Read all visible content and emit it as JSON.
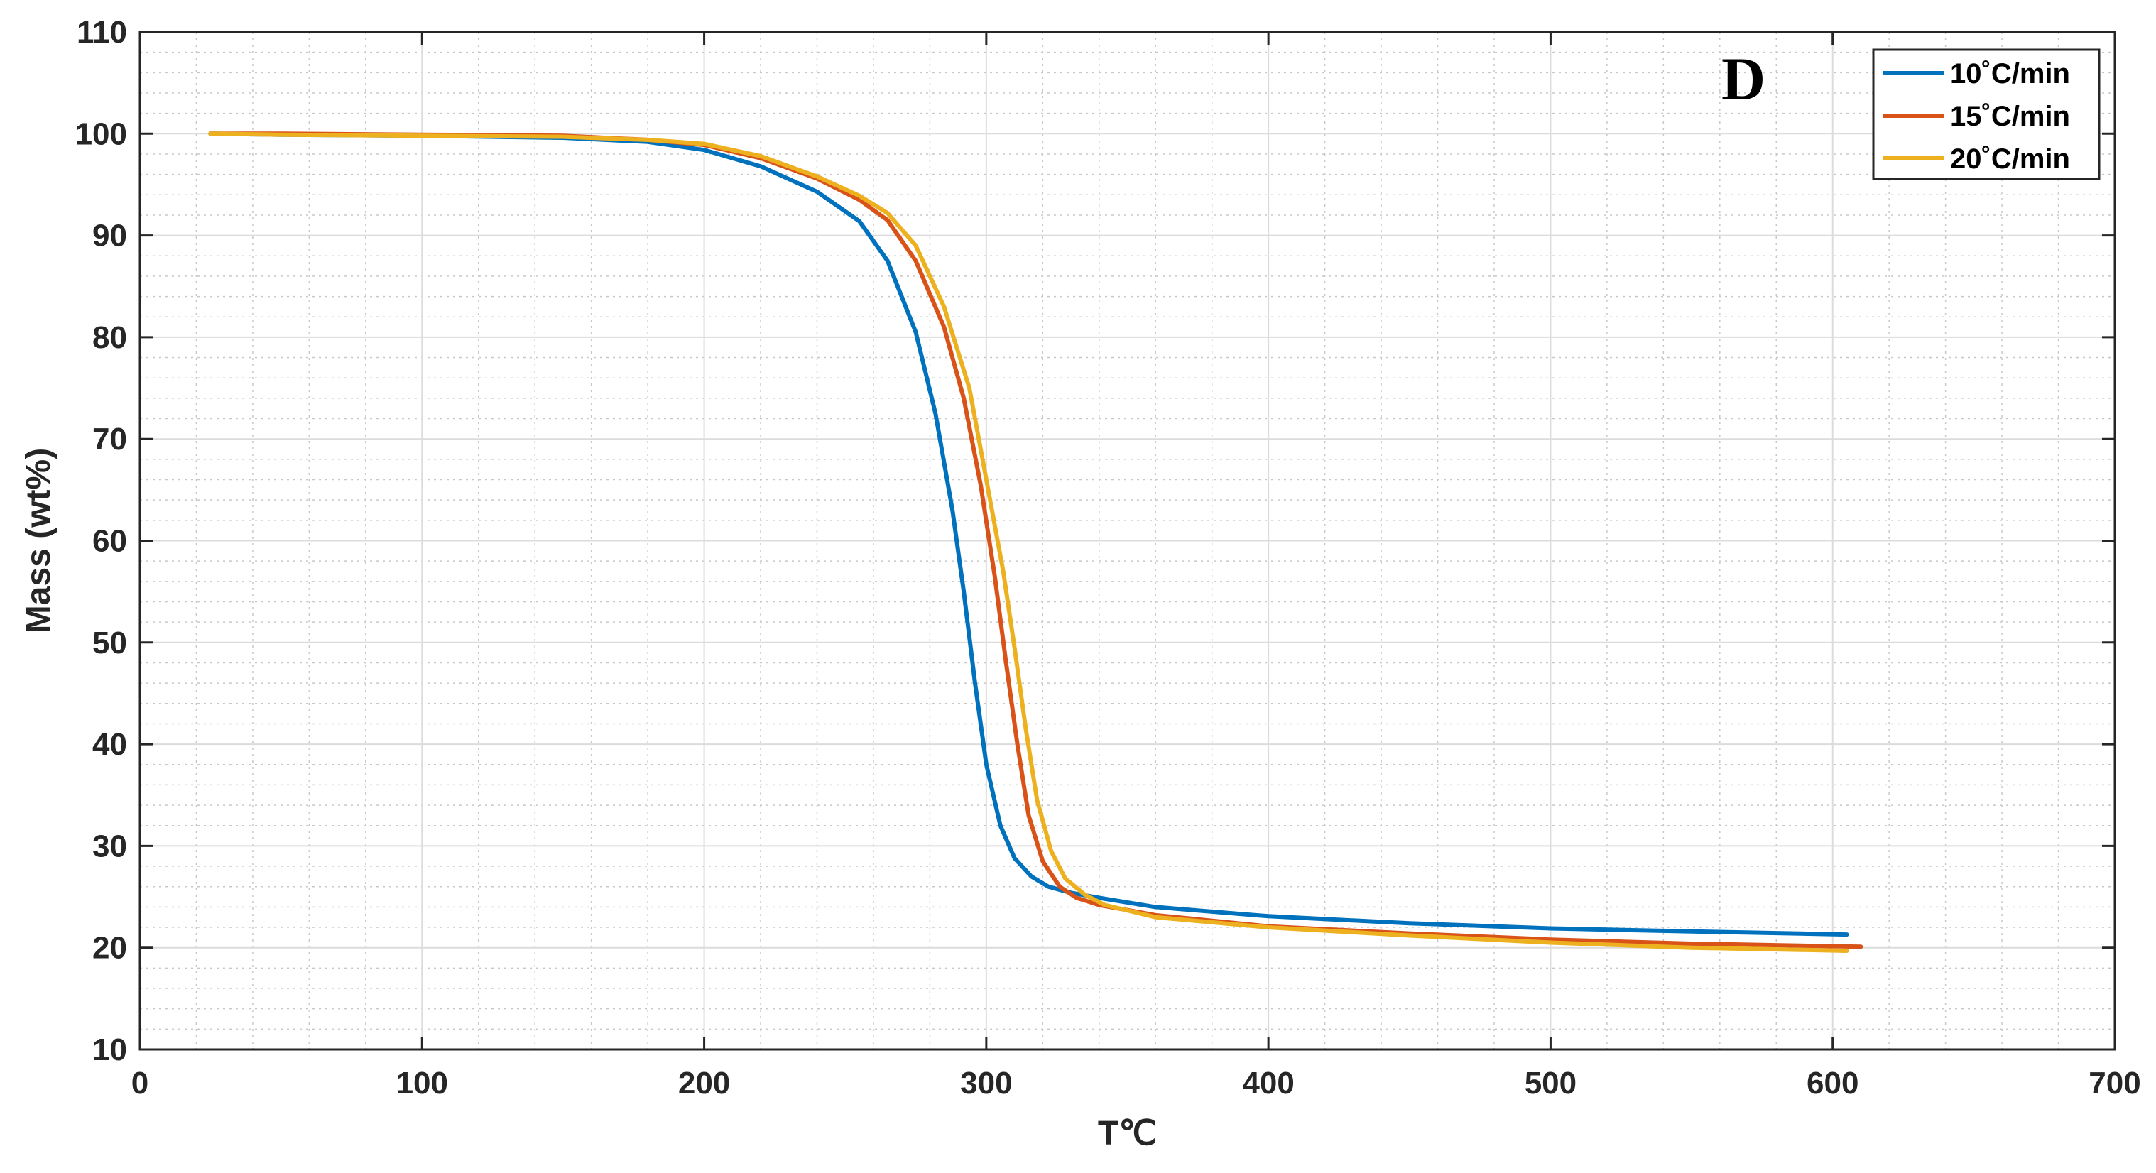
{
  "chart_data": {
    "type": "line",
    "panel_label": "D",
    "title": "",
    "xlabel": "T℃",
    "ylabel": "Mass (wt%)",
    "xlim": [
      0,
      700
    ],
    "ylim": [
      10,
      110
    ],
    "xticks": [
      0,
      100,
      200,
      300,
      400,
      500,
      600,
      700
    ],
    "yticks": [
      10,
      20,
      30,
      40,
      50,
      60,
      70,
      80,
      90,
      100,
      110
    ],
    "grid": true,
    "minor_grid": true,
    "legend_position": "top-right",
    "series": [
      {
        "name": "10˚C/min",
        "color": "#0072BD",
        "x": [
          25,
          50,
          100,
          150,
          180,
          200,
          220,
          240,
          255,
          265,
          275,
          282,
          288,
          292,
          296,
          300,
          305,
          310,
          316,
          322,
          330,
          340,
          360,
          400,
          450,
          500,
          550,
          605
        ],
        "y": [
          100,
          99.9,
          99.8,
          99.6,
          99.2,
          98.4,
          96.8,
          94.3,
          91.4,
          87.5,
          80.5,
          72.5,
          63,
          55,
          46,
          38,
          32,
          28.8,
          27,
          26,
          25.4,
          24.9,
          24,
          23.1,
          22.4,
          21.9,
          21.6,
          21.3
        ]
      },
      {
        "name": "15˚C/min",
        "color": "#D95319",
        "x": [
          25,
          50,
          100,
          150,
          180,
          200,
          220,
          240,
          255,
          265,
          275,
          285,
          292,
          298,
          303,
          307,
          311,
          315,
          320,
          326,
          332,
          340,
          360,
          400,
          450,
          500,
          550,
          610
        ],
        "y": [
          100,
          100,
          99.9,
          99.8,
          99.4,
          98.9,
          97.6,
          95.6,
          93.5,
          91.5,
          87.5,
          81,
          74,
          65.5,
          56.5,
          48,
          40,
          33,
          28.5,
          26,
          24.9,
          24.2,
          23.2,
          22.1,
          21.4,
          20.8,
          20.4,
          20.1
        ]
      },
      {
        "name": "20˚C/min",
        "color": "#EDB120",
        "x": [
          25,
          50,
          100,
          150,
          180,
          200,
          220,
          240,
          255,
          265,
          275,
          285,
          294,
          300,
          306,
          310,
          314,
          318,
          323,
          328,
          335,
          342,
          360,
          400,
          450,
          500,
          550,
          605
        ],
        "y": [
          100,
          99.9,
          99.8,
          99.7,
          99.4,
          99.0,
          97.8,
          95.8,
          93.9,
          92.2,
          89,
          83,
          75,
          66,
          57,
          49.5,
          41.5,
          34.5,
          29.5,
          26.8,
          25.2,
          24.2,
          23.0,
          22.0,
          21.2,
          20.5,
          20.0,
          19.7
        ]
      }
    ]
  }
}
